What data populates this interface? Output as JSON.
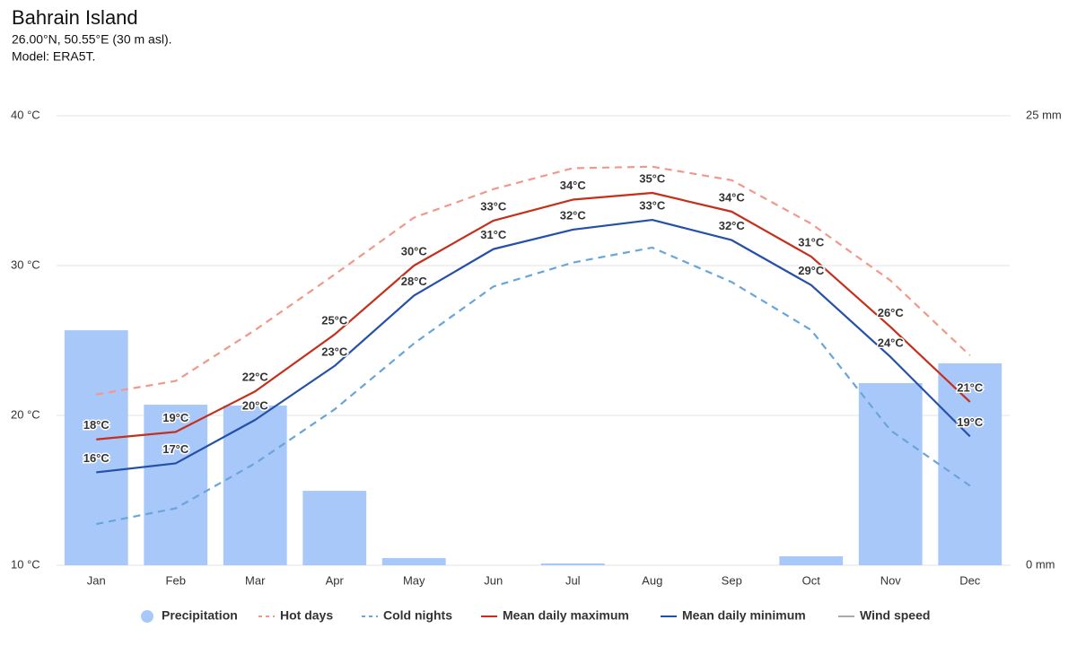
{
  "chart_data": {
    "type": "combo",
    "title": "Bahrain Island",
    "subtitle": [
      "26.00°N, 50.55°E (30 m asl).",
      "Model: ERA5T."
    ],
    "categories": [
      "Jan",
      "Feb",
      "Mar",
      "Apr",
      "May",
      "Jun",
      "Jul",
      "Aug",
      "Sep",
      "Oct",
      "Nov",
      "Dec"
    ],
    "ylim": [
      10,
      40
    ],
    "yticks": [
      {
        "value": 10,
        "label": "10 °C"
      },
      {
        "value": 20,
        "label": "20 °C"
      },
      {
        "value": 30,
        "label": "30 °C"
      },
      {
        "value": 40,
        "label": "40 °C"
      }
    ],
    "y2lim": [
      0,
      25
    ],
    "y2ticks": [
      {
        "value": 0,
        "label": "0 mm"
      },
      {
        "value": 25,
        "label": "25 mm"
      }
    ],
    "grid": true,
    "legend": "bottom",
    "series": [
      {
        "name": "Precipitation",
        "type": "bar",
        "axis": "y2",
        "color": "#a9c8fa",
        "values": [
          13.07,
          8.93,
          8.88,
          4.14,
          0.4,
          0,
          0.1,
          0,
          0,
          0.5,
          10.13,
          11.23
        ]
      },
      {
        "name": "Hot days",
        "type": "line",
        "style": "dashed",
        "color": "#f0998a",
        "values": [
          21.4,
          22.3,
          25.7,
          29.4,
          33.2,
          35.1,
          36.5,
          36.6,
          35.7,
          32.8,
          29.0,
          24.0
        ]
      },
      {
        "name": "Cold nights",
        "type": "line",
        "style": "dashed",
        "color": "#69a5d9",
        "values": [
          12.75,
          13.8,
          16.8,
          20.4,
          24.8,
          28.6,
          30.2,
          31.2,
          28.9,
          25.7,
          19.0,
          15.3
        ]
      },
      {
        "name": "Mean daily maximum",
        "type": "line",
        "style": "solid",
        "color": "#c4301c",
        "values": [
          18.4,
          18.9,
          21.6,
          25.4,
          30.0,
          33.0,
          34.4,
          34.85,
          33.6,
          30.6,
          25.9,
          20.9
        ],
        "value_labels": [
          "18°C",
          "19°C",
          "22°C",
          "25°C",
          "30°C",
          "33°C",
          "34°C",
          "35°C",
          "34°C",
          "31°C",
          "26°C",
          "21°C"
        ]
      },
      {
        "name": "Mean daily minimum",
        "type": "line",
        "style": "solid",
        "color": "#2450a8",
        "values": [
          16.2,
          16.8,
          19.7,
          23.3,
          28.0,
          31.1,
          32.4,
          33.05,
          31.7,
          28.7,
          23.9,
          18.6
        ],
        "value_labels": [
          "16°C",
          "17°C",
          "20°C",
          "23°C",
          "28°C",
          "31°C",
          "32°C",
          "33°C",
          "32°C",
          "29°C",
          "24°C",
          "19°C"
        ]
      },
      {
        "name": "Wind speed",
        "type": "line",
        "style": "solid",
        "color": "#aaaaaa",
        "visible": false
      }
    ]
  }
}
